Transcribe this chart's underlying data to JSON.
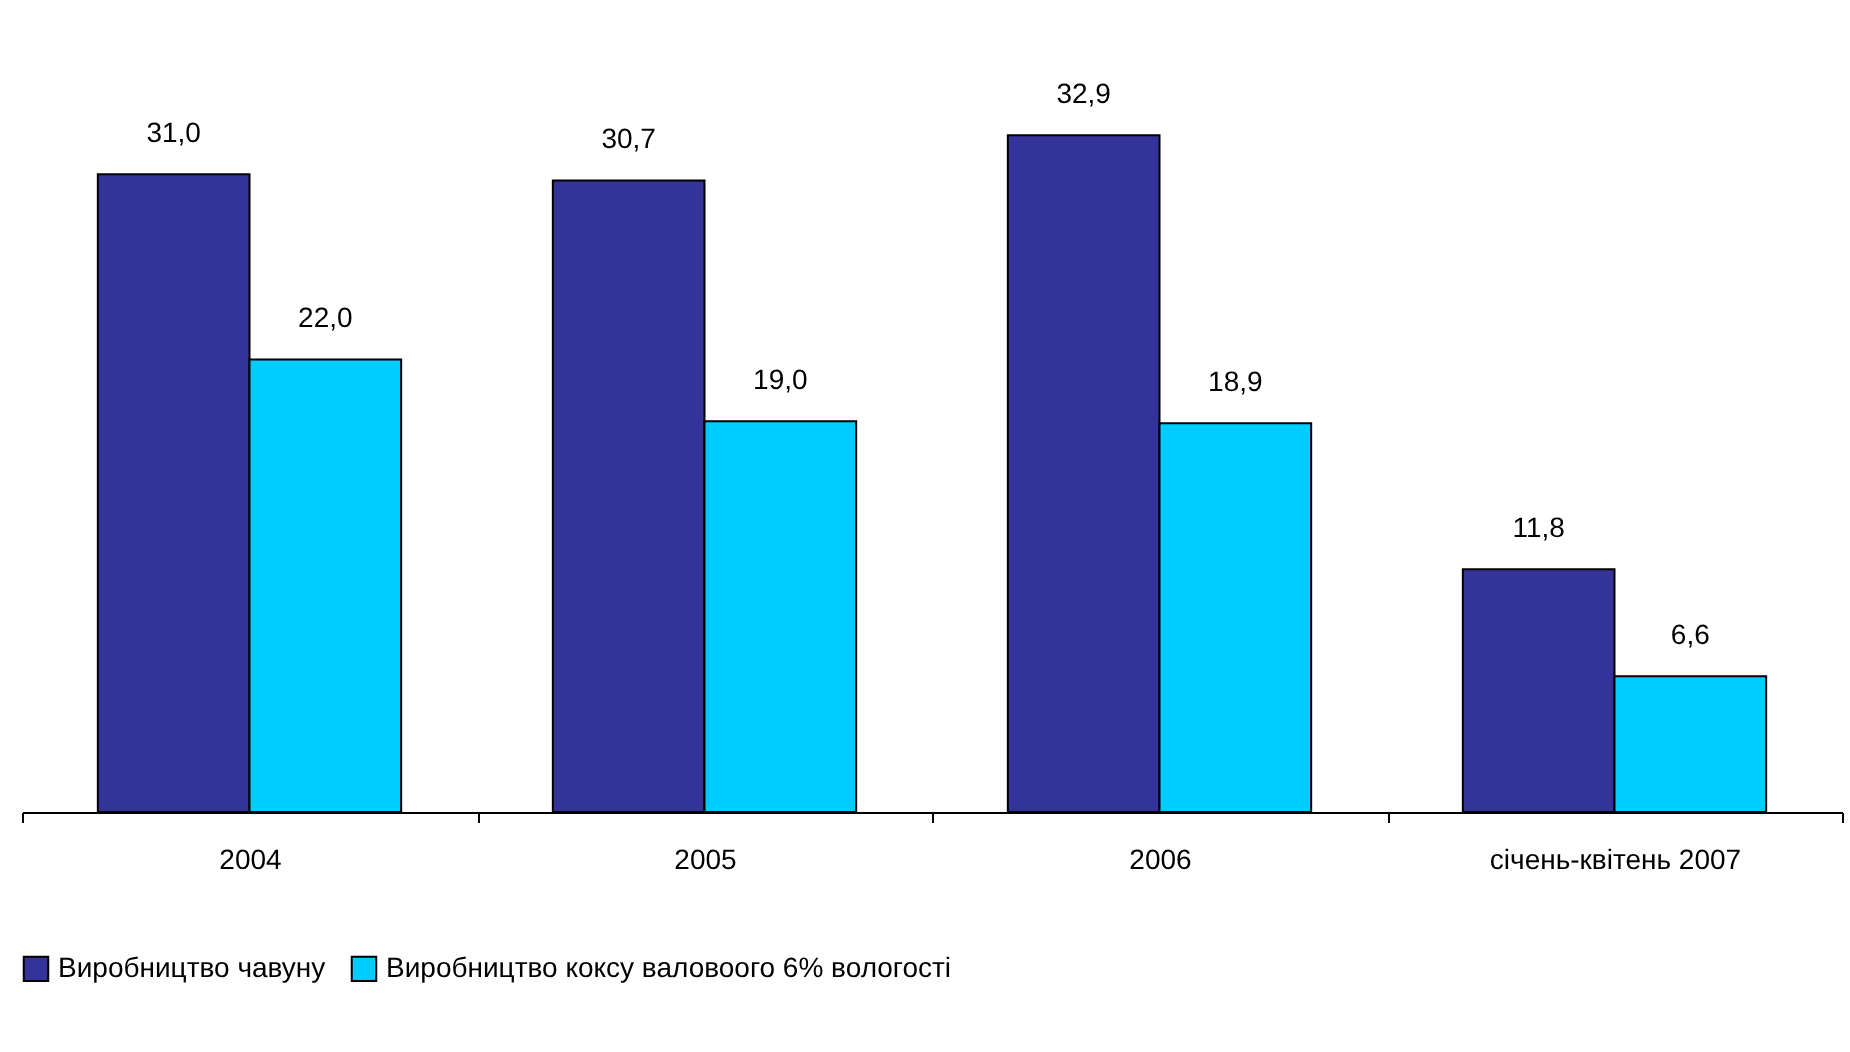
{
  "chart_data": {
    "type": "bar",
    "categories": [
      "2004",
      "2005",
      "2006",
      "січень-квітень 2007"
    ],
    "series": [
      {
        "name": "Виробництво чавуну",
        "color": "#333399",
        "values": [
          31.0,
          30.7,
          32.9,
          11.8
        ],
        "value_labels": [
          "31,0",
          "30,7",
          "32,9",
          "11,8"
        ]
      },
      {
        "name": "Виробництво коксу валовоого 6% вологості",
        "color": "#00ccff",
        "values": [
          22.0,
          19.0,
          18.9,
          6.6
        ],
        "value_labels": [
          "22,0",
          "19,0",
          "18,9",
          "6,6"
        ]
      }
    ],
    "legend": "bottom"
  }
}
